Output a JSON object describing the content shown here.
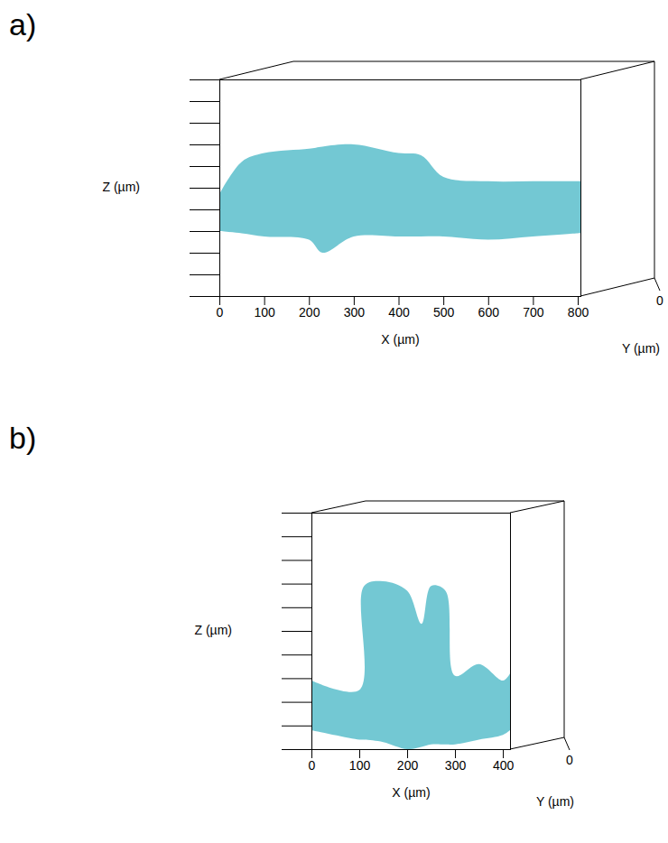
{
  "chart_data": [
    {
      "type": "area",
      "panel_label": "a)",
      "x_label": "X (µm)",
      "y_label": "Z (µm)",
      "depth_label": "Y (µm)",
      "depth_ticks": [
        0
      ],
      "color": "#6cc5d1",
      "tick_labels": "x",
      "xlim": [
        0,
        806
      ],
      "xticks": [
        0,
        100,
        200,
        300,
        400,
        500,
        600,
        700,
        800
      ],
      "ylim": [
        0,
        10
      ],
      "yticks": [
        0,
        1,
        2,
        3,
        4,
        5,
        6,
        7,
        8,
        9,
        10
      ],
      "x": [
        0,
        50,
        100,
        200,
        230,
        300,
        400,
        450,
        500,
        600,
        700,
        800,
        806
      ],
      "upper": [
        4.7,
        6.2,
        6.6,
        6.8,
        6.9,
        7.0,
        6.6,
        6.5,
        5.5,
        5.3,
        5.3,
        5.3,
        5.3
      ],
      "lower": [
        3.0,
        2.9,
        2.75,
        2.6,
        2.0,
        2.75,
        2.75,
        2.75,
        2.75,
        2.6,
        2.75,
        2.9,
        2.9
      ]
    },
    {
      "type": "area",
      "panel_label": "b)",
      "x_label": "X (µm)",
      "y_label": "Z (µm)",
      "depth_label": "Y (µm)",
      "depth_ticks": [
        0
      ],
      "color": "#6cc5d1",
      "tick_labels": "x",
      "xlim": [
        0,
        415
      ],
      "xticks": [
        0,
        100,
        200,
        300,
        400
      ],
      "ylim": [
        0,
        10
      ],
      "yticks": [
        0,
        1,
        2,
        3,
        4,
        5,
        6,
        7,
        8,
        9,
        10
      ],
      "x": [
        0,
        100,
        110,
        150,
        200,
        230,
        250,
        280,
        300,
        350,
        400,
        415
      ],
      "upper": [
        2.9,
        2.5,
        6.9,
        7.1,
        6.7,
        5.3,
        6.9,
        6.7,
        3.1,
        3.6,
        2.9,
        3.2
      ],
      "lower": [
        0.8,
        0.4,
        0.4,
        0.3,
        0.0,
        0.1,
        0.2,
        0.2,
        0.2,
        0.4,
        0.6,
        0.8
      ]
    }
  ]
}
